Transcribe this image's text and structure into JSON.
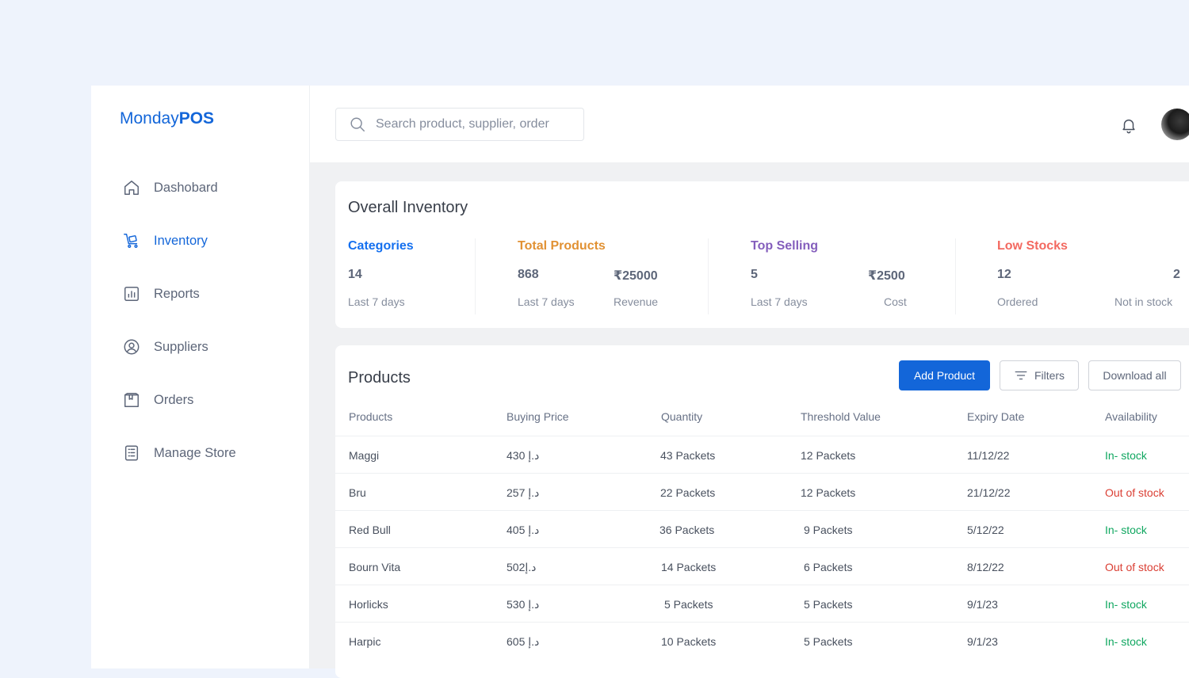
{
  "brand": {
    "prefix": "Monday",
    "suffix": "POS",
    "color": "#1366d9"
  },
  "sidebar": {
    "items": [
      {
        "label": "Dashobard",
        "icon": "home-icon",
        "active": false
      },
      {
        "label": "Inventory",
        "icon": "inventory-icon",
        "active": true
      },
      {
        "label": "Reports",
        "icon": "reports-icon",
        "active": false
      },
      {
        "label": "Suppliers",
        "icon": "suppliers-icon",
        "active": false
      },
      {
        "label": "Orders",
        "icon": "orders-icon",
        "active": false
      },
      {
        "label": "Manage Store",
        "icon": "manage-store-icon",
        "active": false
      }
    ]
  },
  "search": {
    "placeholder": "Search product, supplier, order"
  },
  "header": {
    "icons": [
      "bell-icon",
      "avatar"
    ]
  },
  "overall": {
    "title": "Overall Inventory",
    "categories": {
      "title": "Categories",
      "color": "#1570ef",
      "value": "14",
      "sub": "Last 7 days"
    },
    "total_products": {
      "title": "Total Products",
      "color": "#e19133",
      "value": "868",
      "sub": "Last 7 days",
      "revenue": "₹25000",
      "revenue_label": "Revenue"
    },
    "top_selling": {
      "title": "Top Selling",
      "color": "#845ebc",
      "value": "5",
      "sub": "Last 7 days",
      "cost": "₹2500",
      "cost_label": "Cost"
    },
    "low_stocks": {
      "title": "Low Stocks",
      "color": "#f36960",
      "value": "12",
      "sub": "Ordered",
      "not_in_stock": "2",
      "not_in_stock_label": "Not in stock"
    }
  },
  "products": {
    "title": "Products",
    "add_label": "Add Product",
    "filters_label": "Filters",
    "download_label": "Download all",
    "columns": [
      "Products",
      "Buying Price",
      "Quantity",
      "Threshold Value",
      "Expiry Date",
      "Availability"
    ],
    "rows": [
      {
        "name": "Maggi",
        "price": "430 د.إ",
        "quantity": "43 Packets",
        "threshold": "12 Packets",
        "expiry": "11/12/22",
        "availability": "In- stock",
        "status": "in"
      },
      {
        "name": "Bru",
        "price": "257 د.إ",
        "quantity": "22 Packets",
        "threshold": "12 Packets",
        "expiry": "21/12/22",
        "availability": "Out of stock",
        "status": "out"
      },
      {
        "name": "Red Bull",
        "price": "405 د.إ",
        "quantity": "36 Packets",
        "threshold": "9 Packets",
        "expiry": "5/12/22",
        "availability": "In- stock",
        "status": "in"
      },
      {
        "name": "Bourn Vita",
        "price": "502د.إ",
        "quantity": "14 Packets",
        "threshold": "6 Packets",
        "expiry": "8/12/22",
        "availability": "Out of stock",
        "status": "out"
      },
      {
        "name": "Horlicks",
        "price": "530 د.إ",
        "quantity": "5 Packets",
        "threshold": "5 Packets",
        "expiry": "9/1/23",
        "availability": "In- stock",
        "status": "in"
      },
      {
        "name": "Harpic",
        "price": "605 د.إ",
        "quantity": "10 Packets",
        "threshold": "5 Packets",
        "expiry": "9/1/23",
        "availability": "In- stock",
        "status": "in"
      }
    ]
  },
  "colors": {
    "accent": "#1366d9",
    "in_stock": "#10a760",
    "out_of_stock": "#da3e33"
  }
}
